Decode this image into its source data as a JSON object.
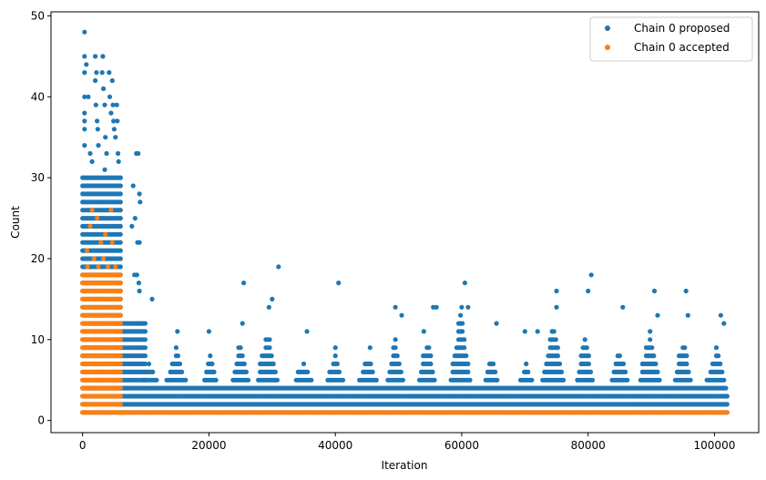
{
  "chart_data": {
    "type": "scatter",
    "xlabel": "Iteration",
    "ylabel": "Count",
    "xlim": [
      -5000,
      107000
    ],
    "ylim": [
      -1.5,
      50.5
    ],
    "xticks": [
      0,
      20000,
      40000,
      60000,
      80000,
      100000
    ],
    "yticks": [
      0,
      10,
      20,
      30,
      40,
      50
    ],
    "legend_position": "top-right",
    "grid": false,
    "series": [
      {
        "name": "Chain 0 proposed",
        "color": "#1f77b4",
        "dense_bands": [
          {
            "x_start": 0,
            "x_end": 6000,
            "y_min": 1,
            "y_max": 30
          },
          {
            "x_start": 6000,
            "x_end": 102000,
            "y_min": 1,
            "y_max": 3
          },
          {
            "x_start": 6000,
            "x_end": 10000,
            "y_min": 4,
            "y_max": 12
          },
          {
            "x_start": 10000,
            "x_end": 102000,
            "y_min": 4,
            "y_max": 4
          }
        ],
        "clusters": [
          {
            "x_start": 9000,
            "x_end": 12000,
            "y_max": 7
          },
          {
            "x_start": 13000,
            "x_end": 16500,
            "y_max": 9
          },
          {
            "x_start": 19000,
            "x_end": 21500,
            "y_max": 8
          },
          {
            "x_start": 23500,
            "x_end": 26500,
            "y_max": 10
          },
          {
            "x_start": 27500,
            "x_end": 31000,
            "y_max": 12
          },
          {
            "x_start": 33500,
            "x_end": 36500,
            "y_max": 8
          },
          {
            "x_start": 38500,
            "x_end": 41500,
            "y_max": 8
          },
          {
            "x_start": 43500,
            "x_end": 47000,
            "y_max": 8
          },
          {
            "x_start": 48000,
            "x_end": 51000,
            "y_max": 10
          },
          {
            "x_start": 53000,
            "x_end": 56000,
            "y_max": 11
          },
          {
            "x_start": 58000,
            "x_end": 61500,
            "y_max": 14
          },
          {
            "x_start": 63500,
            "x_end": 66000,
            "y_max": 8
          },
          {
            "x_start": 69000,
            "x_end": 71500,
            "y_max": 7
          },
          {
            "x_start": 72500,
            "x_end": 76500,
            "y_max": 12
          },
          {
            "x_start": 78000,
            "x_end": 81000,
            "y_max": 12
          },
          {
            "x_start": 83500,
            "x_end": 86500,
            "y_max": 9
          },
          {
            "x_start": 88000,
            "x_end": 91500,
            "y_max": 12
          },
          {
            "x_start": 93500,
            "x_end": 96500,
            "y_max": 11
          },
          {
            "x_start": 98500,
            "x_end": 102000,
            "y_max": 9
          }
        ],
        "points": [
          [
            300,
            48
          ],
          [
            300,
            45
          ],
          [
            300,
            43
          ],
          [
            300,
            40
          ],
          [
            300,
            38
          ],
          [
            300,
            37
          ],
          [
            300,
            36
          ],
          [
            300,
            34
          ],
          [
            600,
            44
          ],
          [
            900,
            40
          ],
          [
            1200,
            33
          ],
          [
            1500,
            32
          ],
          [
            2000,
            45
          ],
          [
            2000,
            42
          ],
          [
            2100,
            39
          ],
          [
            2200,
            43
          ],
          [
            2300,
            37
          ],
          [
            2400,
            36
          ],
          [
            2500,
            34
          ],
          [
            3200,
            45
          ],
          [
            3100,
            43
          ],
          [
            3300,
            41
          ],
          [
            3500,
            39
          ],
          [
            3600,
            35
          ],
          [
            3800,
            33
          ],
          [
            3500,
            31
          ],
          [
            4200,
            43
          ],
          [
            4300,
            40
          ],
          [
            4500,
            38
          ],
          [
            4700,
            42
          ],
          [
            4800,
            39
          ],
          [
            4900,
            37
          ],
          [
            5000,
            36
          ],
          [
            5200,
            35
          ],
          [
            5400,
            39
          ],
          [
            5500,
            37
          ],
          [
            5600,
            33
          ],
          [
            5700,
            32
          ],
          [
            7800,
            24
          ],
          [
            8000,
            29
          ],
          [
            8300,
            25
          ],
          [
            8500,
            33
          ],
          [
            8800,
            33
          ],
          [
            9000,
            28
          ],
          [
            9100,
            27
          ],
          [
            9000,
            22
          ],
          [
            8700,
            22
          ],
          [
            8200,
            18
          ],
          [
            8600,
            18
          ],
          [
            8900,
            17
          ],
          [
            9000,
            16
          ],
          [
            11000,
            15
          ],
          [
            15000,
            11
          ],
          [
            20000,
            11
          ],
          [
            25500,
            17
          ],
          [
            25300,
            12
          ],
          [
            29500,
            14
          ],
          [
            31000,
            19
          ],
          [
            30000,
            15
          ],
          [
            35500,
            11
          ],
          [
            40500,
            17
          ],
          [
            40000,
            9
          ],
          [
            45500,
            9
          ],
          [
            49500,
            14
          ],
          [
            50500,
            13
          ],
          [
            54000,
            11
          ],
          [
            55500,
            14
          ],
          [
            56000,
            14
          ],
          [
            60500,
            17
          ],
          [
            60000,
            14
          ],
          [
            61000,
            14
          ],
          [
            65500,
            12
          ],
          [
            70000,
            11
          ],
          [
            72000,
            11
          ],
          [
            75000,
            16
          ],
          [
            75000,
            14
          ],
          [
            80000,
            16
          ],
          [
            80500,
            18
          ],
          [
            85500,
            14
          ],
          [
            90500,
            16
          ],
          [
            91000,
            13
          ],
          [
            95500,
            16
          ],
          [
            95800,
            13
          ],
          [
            101000,
            13
          ],
          [
            101500,
            12
          ]
        ]
      },
      {
        "name": "Chain 0 accepted",
        "color": "#ff7f0e",
        "dense_bands": [
          {
            "x_start": 0,
            "x_end": 6000,
            "y_min": 1,
            "y_max": 18
          },
          {
            "x_start": 6000,
            "x_end": 102000,
            "y_min": 1,
            "y_max": 1
          }
        ],
        "clusters": [],
        "points": [
          [
            1500,
            26
          ],
          [
            4500,
            26
          ],
          [
            4700,
            22
          ],
          [
            2300,
            25
          ],
          [
            3600,
            23
          ],
          [
            700,
            21
          ],
          [
            1200,
            24
          ],
          [
            2900,
            22
          ],
          [
            1800,
            20
          ],
          [
            3300,
            20
          ],
          [
            4000,
            19
          ],
          [
            800,
            19
          ],
          [
            5200,
            19
          ],
          [
            2500,
            19
          ]
        ]
      }
    ]
  }
}
